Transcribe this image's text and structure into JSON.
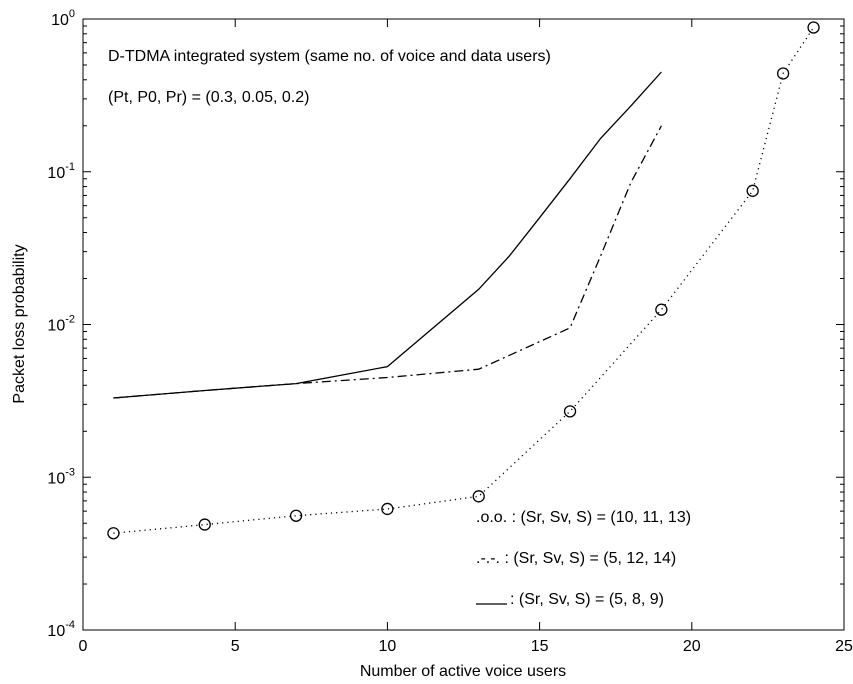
{
  "chart_data": {
    "type": "line",
    "xlabel": "Number of active voice users",
    "ylabel": "Packet loss probability",
    "xlim": [
      0,
      25
    ],
    "ylim": [
      0.0001,
      1
    ],
    "yscale": "log",
    "grid": false,
    "x_ticks": [
      {
        "value": 0,
        "label": "0"
      },
      {
        "value": 5,
        "label": "5"
      },
      {
        "value": 10,
        "label": "10"
      },
      {
        "value": 15,
        "label": "15"
      },
      {
        "value": 20,
        "label": "20"
      },
      {
        "value": 25,
        "label": "25"
      }
    ],
    "y_ticks": [
      {
        "value": 0.0001,
        "base": "10",
        "exp": "-4"
      },
      {
        "value": 0.001,
        "base": "10",
        "exp": "-3"
      },
      {
        "value": 0.01,
        "base": "10",
        "exp": "-2"
      },
      {
        "value": 0.1,
        "base": "10",
        "exp": "-1"
      },
      {
        "value": 1,
        "base": "10",
        "exp": "0"
      }
    ],
    "annotations": [
      "D-TDMA integrated system (same no. of voice and data users)",
      "(Pt, P0, Pr) = (0.3, 0.05, 0.2)"
    ],
    "legend_position": "lower-right",
    "series": [
      {
        "name": ".o.o. : (Sr, Sv, S) = (10, 11, 13)",
        "style": "dotted-circle",
        "x": [
          1,
          4,
          7,
          10,
          13,
          16,
          19,
          22,
          23,
          24
        ],
        "y": [
          0.00043,
          0.00049,
          0.00056,
          0.00062,
          0.00075,
          0.0027,
          0.0125,
          0.075,
          0.44,
          0.88
        ]
      },
      {
        "name": ".-.-. : (Sr, Sv, S) = (5, 12, 14)",
        "style": "dashdot",
        "x": [
          1,
          4,
          7,
          10,
          13,
          16,
          17,
          18,
          19
        ],
        "y": [
          0.0033,
          0.0037,
          0.0041,
          0.0045,
          0.0051,
          0.0095,
          0.028,
          0.085,
          0.2
        ]
      },
      {
        "name": ": (Sr, Sv, S) = (5, 8, 9)",
        "style": "solid",
        "x": [
          1,
          4,
          7,
          10,
          13,
          14,
          15,
          16,
          17,
          18,
          19
        ],
        "y": [
          0.0033,
          0.0037,
          0.0041,
          0.0053,
          0.017,
          0.028,
          0.05,
          0.09,
          0.165,
          0.27,
          0.45
        ]
      }
    ]
  }
}
